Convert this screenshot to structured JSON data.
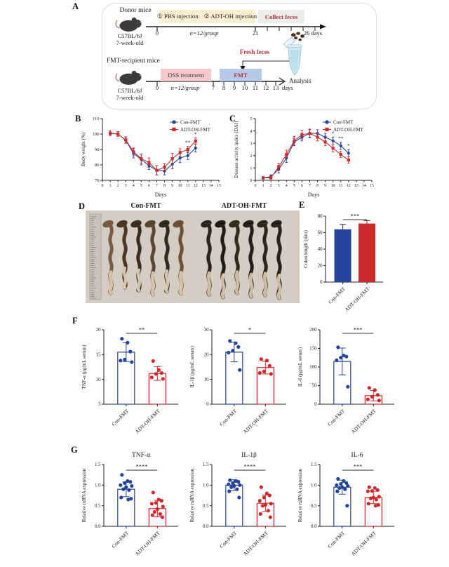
{
  "colors": {
    "blue": "#24439b",
    "red": "#cd2b2b",
    "photo_bg": "#d5cdc4"
  },
  "panel_labels": {
    "A": "A",
    "B": "B",
    "C": "C",
    "D": "D",
    "E": "E",
    "F": "F",
    "G": "G"
  },
  "panel_a": {
    "donor_title": "Donor mice",
    "donor_strain": "C57BL/6J",
    "donor_age": "7-week-old",
    "injection_1": "① PBS injection",
    "injection_2": "② ADT-OH injection",
    "collect_feces": "Collect feces",
    "donor_n": "n=12/group",
    "donor_t0": "0",
    "donor_t21": "21",
    "donor_tend": "26 days",
    "fresh_feces": "Fresh feces",
    "recipient_title": "FMT-recipient mice",
    "recipient_strain": "C57BL/6J",
    "recipient_age": "7-week-old",
    "dss": "DSS treatment",
    "fmt": "FMT",
    "recipient_n": "n=12/group",
    "recipient_t0": "0",
    "recipient_ticks": [
      "7",
      "8",
      "9",
      "10",
      "11",
      "12",
      "13"
    ],
    "days": "days",
    "analysis": "Analysis"
  },
  "panel_d": {
    "groups": [
      {
        "label": "Con-FMT",
        "count": 6
      },
      {
        "label": "ADT-OH-FMT",
        "count": 6
      }
    ]
  },
  "chart_data": [
    {
      "id": "B",
      "type": "line",
      "xlabel": "Days",
      "ylabel": "Body weight (%)",
      "xlim": [
        0,
        15
      ],
      "ylim": [
        70,
        110
      ],
      "xticks": [
        0,
        1,
        2,
        3,
        4,
        5,
        6,
        7,
        8,
        9,
        10,
        11,
        12,
        13,
        14,
        15
      ],
      "yticks": [
        70,
        80,
        90,
        100,
        110
      ],
      "x": [
        1,
        2,
        3,
        4,
        5,
        6,
        7,
        8,
        9,
        10,
        11,
        12
      ],
      "legend": true,
      "series": [
        {
          "name": "Con-FMT",
          "color": "blue",
          "marker": "circle",
          "values": [
            100.5,
            100,
            96,
            87.5,
            83.5,
            79.5,
            76.5,
            76,
            80.5,
            84.5,
            86,
            91
          ],
          "errors": [
            1.5,
            1.5,
            2,
            3,
            3.5,
            2.5,
            3,
            2.5,
            3,
            3,
            2.5,
            2.5
          ]
        },
        {
          "name": "ADT-OH-FMT",
          "color": "red",
          "marker": "square",
          "values": [
            100.5,
            100,
            96.2,
            88.5,
            84,
            81.5,
            76.5,
            78.5,
            84,
            88,
            90,
            95.5
          ],
          "errors": [
            1.5,
            1.5,
            2,
            2.5,
            3,
            3,
            3,
            2.5,
            3.5,
            2.5,
            2,
            2
          ]
        }
      ],
      "sig": [
        {
          "x": 11,
          "label": "**"
        },
        {
          "x": 12,
          "label": "*"
        }
      ]
    },
    {
      "id": "C",
      "type": "line",
      "xlabel": "Days",
      "ylabel": "Disease activity index (DAI)",
      "xlim": [
        0,
        15
      ],
      "ylim": [
        0,
        5
      ],
      "xticks": [
        0,
        1,
        2,
        3,
        4,
        5,
        6,
        7,
        8,
        9,
        10,
        11,
        12,
        13,
        14,
        15
      ],
      "yticks": [
        0,
        1,
        2,
        3,
        4,
        5
      ],
      "x": [
        1,
        2,
        3,
        4,
        5,
        6,
        7,
        8,
        9,
        10,
        11,
        12
      ],
      "legend": true,
      "series": [
        {
          "name": "Con-FMT",
          "color": "blue",
          "marker": "circle",
          "values": [
            0.2,
            0.3,
            0.9,
            1.8,
            3.1,
            3.5,
            3.8,
            3.8,
            3.5,
            3.2,
            2.8,
            2.2
          ],
          "errors": [
            0.1,
            0.15,
            0.3,
            0.35,
            0.3,
            0.3,
            0.35,
            0.3,
            0.3,
            0.3,
            0.3,
            0.3
          ]
        },
        {
          "name": "ADT-OH-FMT",
          "color": "red",
          "marker": "square",
          "values": [
            0.2,
            0.2,
            1.1,
            2.1,
            3.2,
            3.7,
            3.8,
            3.5,
            3.1,
            2.6,
            2.1,
            1.65
          ],
          "errors": [
            0.1,
            0.1,
            0.3,
            0.35,
            0.35,
            0.35,
            0.3,
            0.3,
            0.3,
            0.3,
            0.25,
            0.25
          ]
        }
      ],
      "sig": [
        {
          "x": 10,
          "label": "*"
        },
        {
          "x": 11,
          "label": "**"
        },
        {
          "x": 12,
          "label": "*"
        }
      ]
    },
    {
      "id": "E",
      "type": "bar",
      "ylabel": "Colon length (mm)",
      "filled": true,
      "ylim": [
        0,
        80
      ],
      "yticks": [
        0,
        20,
        40,
        60,
        80
      ],
      "ydec": 0,
      "categories": [
        "Con-FMT",
        "ADT-OH-FMT"
      ],
      "means": [
        64,
        71
      ],
      "errors": [
        6,
        3.5
      ],
      "sig": "***"
    },
    {
      "id": "F1",
      "type": "scatter-bar",
      "ylabel": "TNF-α (pg/mL serum)",
      "ylim": [
        5,
        20
      ],
      "yticks": [
        5,
        10,
        15,
        20
      ],
      "ydec": 0,
      "categories": [
        "Con-FMT",
        "ADT-OH-FMT"
      ],
      "means": [
        15.5,
        11.2
      ],
      "errors": [
        1.9,
        1.4
      ],
      "points": [
        [
          18.2,
          17.4,
          15.6,
          14.0,
          13.8,
          13.5
        ],
        [
          13.7,
          11.9,
          11.3,
          11.1,
          10.4,
          10.1
        ]
      ],
      "sig": "**"
    },
    {
      "id": "F2",
      "type": "scatter-bar",
      "ylabel": "IL-1β (pg/mL serum)",
      "ylim": [
        0,
        30
      ],
      "yticks": [
        0,
        10,
        20,
        30
      ],
      "ydec": 0,
      "categories": [
        "Con-FMT",
        "ADT-OH-FMT"
      ],
      "means": [
        21,
        14.8
      ],
      "errors": [
        3.9,
        2.6
      ],
      "points": [
        [
          25.5,
          24.6,
          23.1,
          21.6,
          20.8,
          13.8
        ],
        [
          18.2,
          17.6,
          15.5,
          13.2,
          12.6,
          12.2
        ]
      ],
      "sig": "*"
    },
    {
      "id": "F3",
      "type": "scatter-bar",
      "ylabel": "IL-6 (pg/mL serum)",
      "ylim": [
        0,
        200
      ],
      "yticks": [
        0,
        50,
        100,
        150,
        200
      ],
      "ydec": 0,
      "categories": [
        "Con-FMT",
        "ADT-OH-FMT"
      ],
      "means": [
        115,
        23
      ],
      "errors": [
        36,
        14
      ],
      "points": [
        [
          153,
          131,
          128,
          125,
          118,
          47
        ],
        [
          44,
          38,
          25,
          20,
          13,
          10
        ]
      ],
      "sig": "***"
    },
    {
      "id": "G1",
      "type": "scatter-bar",
      "title": "TNF-α",
      "ylabel": "Relative mRNA expression",
      "ylim": [
        0,
        1.5
      ],
      "yticks": [
        0,
        0.5,
        1,
        1.5
      ],
      "ydec": 1,
      "categories": [
        "Con-FMT",
        "ADT-OH-FMT"
      ],
      "means": [
        0.9,
        0.43
      ],
      "errors": [
        0.18,
        0.2
      ],
      "points": [
        [
          1.25,
          1.1,
          1.08,
          1.05,
          1.0,
          0.98,
          0.95,
          0.9,
          0.88,
          0.7,
          0.67,
          0.65
        ],
        [
          0.82,
          0.65,
          0.62,
          0.57,
          0.55,
          0.48,
          0.42,
          0.35,
          0.3,
          0.27,
          0.22
        ]
      ],
      "sig": "****"
    },
    {
      "id": "G2",
      "type": "scatter-bar",
      "title": "IL-1β",
      "ylabel": "Relative mRNA expression",
      "ylim": [
        0,
        1.5
      ],
      "yticks": [
        0,
        0.5,
        1,
        1.5
      ],
      "ydec": 1,
      "categories": [
        "Con-FMT",
        "ADT-OH-FMT"
      ],
      "means": [
        1.0,
        0.56
      ],
      "errors": [
        0.13,
        0.2
      ],
      "points": [
        [
          1.12,
          1.1,
          1.08,
          1.05,
          1.02,
          1.0,
          0.98,
          0.95,
          0.9,
          0.85,
          0.7
        ],
        [
          0.95,
          0.8,
          0.75,
          0.7,
          0.62,
          0.55,
          0.52,
          0.5,
          0.38,
          0.3,
          0.22
        ]
      ],
      "sig": "****"
    },
    {
      "id": "G3",
      "type": "scatter-bar",
      "title": "IL-6",
      "ylabel": "Relative mRNA expression",
      "ylim": [
        0,
        1.5
      ],
      "yticks": [
        0,
        0.5,
        1,
        1.5
      ],
      "ydec": 1,
      "categories": [
        "Con-FMT",
        "ADT-OH-FMT"
      ],
      "means": [
        0.95,
        0.7
      ],
      "errors": [
        0.17,
        0.15
      ],
      "points": [
        [
          1.15,
          1.1,
          1.05,
          1.03,
          1.0,
          0.98,
          0.95,
          0.93,
          0.9,
          0.85,
          0.5
        ],
        [
          0.95,
          0.93,
          0.88,
          0.86,
          0.85,
          0.72,
          0.7,
          0.68,
          0.65,
          0.55,
          0.52,
          0.5
        ]
      ],
      "sig": "***"
    }
  ]
}
